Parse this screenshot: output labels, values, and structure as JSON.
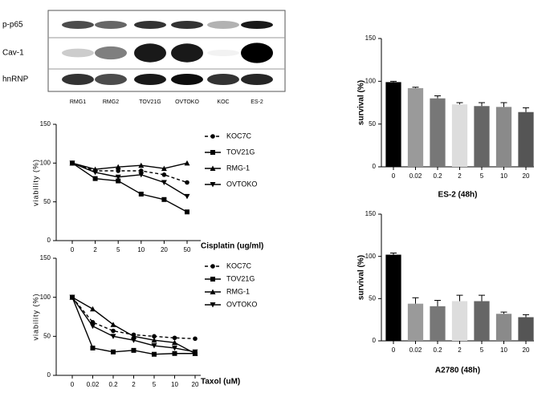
{
  "blot": {
    "rows": [
      "p-p65",
      "Cav-1",
      "hnRNP"
    ],
    "lanes": [
      "RMG1",
      "RMG2",
      "TOV21G",
      "OVTOKO",
      "KOC",
      "ES-2"
    ]
  },
  "chart_data": [
    {
      "type": "line",
      "ylabel": "viability (%)",
      "xlabel": "Cisplatin (ug/ml)",
      "categories": [
        "0",
        "2",
        "5",
        "10",
        "20",
        "50"
      ],
      "ylim": [
        0,
        150
      ],
      "yticks": [
        0,
        50,
        100,
        150
      ],
      "series": [
        {
          "name": "KOC7C",
          "color": "#000000",
          "marker": "circle",
          "dashed": true,
          "values": [
            100,
            90,
            90,
            90,
            85,
            75
          ]
        },
        {
          "name": "TOV21G",
          "color": "#000000",
          "marker": "square",
          "dashed": false,
          "values": [
            100,
            80,
            77,
            60,
            53,
            37
          ]
        },
        {
          "name": "RMG-1",
          "color": "#000000",
          "marker": "triangle-up",
          "dashed": false,
          "values": [
            100,
            92,
            95,
            97,
            93,
            100
          ]
        },
        {
          "name": "OVTOKO",
          "color": "#000000",
          "marker": "triangle-down",
          "dashed": false,
          "values": [
            100,
            88,
            82,
            85,
            75,
            57
          ]
        }
      ]
    },
    {
      "type": "line",
      "ylabel": "viability (%)",
      "xlabel": "Taxol (uM)",
      "categories": [
        "0",
        "0.02",
        "0.2",
        "2",
        "5",
        "10",
        "20"
      ],
      "ylim": [
        0,
        150
      ],
      "yticks": [
        0,
        50,
        100,
        150
      ],
      "series": [
        {
          "name": "KOC7C",
          "color": "#000000",
          "marker": "circle",
          "dashed": true,
          "values": [
            100,
            68,
            57,
            52,
            50,
            48,
            47
          ]
        },
        {
          "name": "TOV21G",
          "color": "#000000",
          "marker": "square",
          "dashed": false,
          "values": [
            100,
            35,
            30,
            32,
            27,
            28,
            28
          ]
        },
        {
          "name": "RMG-1",
          "color": "#000000",
          "marker": "triangle-up",
          "dashed": false,
          "values": [
            100,
            85,
            65,
            50,
            45,
            42,
            28
          ]
        },
        {
          "name": "OVTOKO",
          "color": "#000000",
          "marker": "triangle-down",
          "dashed": false,
          "values": [
            100,
            63,
            50,
            45,
            38,
            35,
            30
          ]
        }
      ]
    },
    {
      "type": "bar",
      "ylabel": "survival (%)",
      "xlabel": "ES-2 (48h)",
      "categories": [
        "0",
        "0.02",
        "0.2",
        "2",
        "5",
        "10",
        "20"
      ],
      "ylim": [
        0,
        150
      ],
      "yticks": [
        0,
        50,
        100,
        150
      ],
      "values": [
        99,
        92,
        80,
        73,
        71,
        70,
        64
      ],
      "errors": [
        1,
        1,
        3,
        2,
        4,
        5,
        5
      ],
      "colors": [
        "#000000",
        "#9a9a9a",
        "#777777",
        "#dddddd",
        "#666666",
        "#8a8a8a",
        "#555555"
      ]
    },
    {
      "type": "bar",
      "ylabel": "survival (%)",
      "xlabel": "A2780 (48h)",
      "categories": [
        "0",
        "0.02",
        "0.2",
        "2",
        "5",
        "10",
        "20"
      ],
      "ylim": [
        0,
        150
      ],
      "yticks": [
        0,
        50,
        100,
        150
      ],
      "values": [
        102,
        44,
        41,
        47,
        47,
        32,
        28
      ],
      "errors": [
        2,
        7,
        7,
        7,
        7,
        2,
        3
      ],
      "colors": [
        "#000000",
        "#9a9a9a",
        "#777777",
        "#dddddd",
        "#666666",
        "#8a8a8a",
        "#555555"
      ]
    }
  ]
}
